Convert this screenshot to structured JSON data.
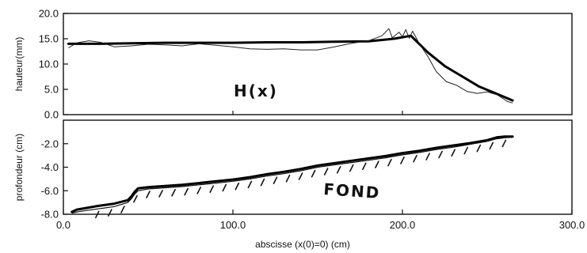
{
  "chart_data": [
    {
      "type": "line",
      "ylabel": "hauteur(mm)",
      "ylim": [
        0,
        20
      ],
      "xlim": [
        0,
        300
      ],
      "yticks": [
        "20.0",
        "15.0",
        "10.0",
        "5.0",
        "0.0"
      ],
      "annotation": "H(x)",
      "series": [
        {
          "style": "thick",
          "x": [
            3,
            20,
            40,
            60,
            80,
            100,
            120,
            140,
            160,
            180,
            195,
            205,
            215,
            225,
            235,
            245,
            255,
            265
          ],
          "y": [
            14.0,
            14.0,
            14.1,
            14.2,
            14.2,
            14.2,
            14.3,
            14.3,
            14.4,
            14.5,
            15.0,
            15.6,
            12.3,
            9.6,
            7.6,
            5.6,
            4.2,
            2.8
          ]
        },
        {
          "style": "thin",
          "x": [
            3,
            8,
            15,
            22,
            30,
            40,
            50,
            60,
            70,
            80,
            90,
            100,
            110,
            120,
            130,
            140,
            150,
            160,
            170,
            180,
            188,
            192,
            194,
            198,
            200,
            202,
            204,
            206,
            210,
            215,
            220,
            226,
            232,
            238,
            244,
            250,
            256,
            262,
            265
          ],
          "y": [
            13.2,
            14.2,
            14.6,
            14.3,
            13.4,
            13.6,
            13.9,
            13.8,
            13.6,
            14.0,
            13.7,
            13.4,
            13.0,
            12.9,
            13.0,
            12.8,
            12.8,
            13.4,
            14.1,
            14.6,
            15.6,
            17.0,
            15.2,
            16.3,
            15.4,
            16.8,
            15.1,
            16.5,
            14.0,
            11.5,
            8.5,
            6.5,
            5.8,
            4.6,
            4.2,
            4.5,
            3.9,
            2.6,
            2.3
          ]
        }
      ]
    },
    {
      "type": "line",
      "ylabel": "profondeur (cm)",
      "xlabel": "abscisse (x(0)=0) (cm)",
      "ylim": [
        -8,
        0
      ],
      "xlim": [
        0,
        300
      ],
      "yticks": [
        "-2.0",
        "-4.0",
        "-6.0",
        "-8.0"
      ],
      "xticks": [
        "0.0",
        "100.0",
        "200.0",
        "300.0"
      ],
      "annotation": "FOND",
      "series": [
        {
          "style": "thick",
          "x": [
            5,
            8,
            12,
            20,
            30,
            38,
            40,
            42,
            44,
            50,
            60,
            70,
            80,
            90,
            100,
            110,
            120,
            130,
            140,
            150,
            160,
            170,
            180,
            190,
            200,
            210,
            220,
            230,
            240,
            250,
            256,
            260,
            265
          ],
          "y": [
            -7.8,
            -7.6,
            -7.5,
            -7.3,
            -7.1,
            -6.8,
            -6.5,
            -6.1,
            -5.8,
            -5.7,
            -5.6,
            -5.5,
            -5.35,
            -5.2,
            -5.05,
            -4.85,
            -4.6,
            -4.4,
            -4.15,
            -3.85,
            -3.65,
            -3.45,
            -3.25,
            -3.05,
            -2.8,
            -2.6,
            -2.35,
            -2.15,
            -1.95,
            -1.7,
            -1.45,
            -1.4,
            -1.4
          ]
        },
        {
          "style": "hatch",
          "x": [
            5,
            10,
            20,
            30,
            38,
            40,
            42,
            44,
            50,
            60,
            70,
            80,
            90,
            100,
            110,
            120,
            130,
            140,
            150,
            160,
            170,
            180,
            190,
            200,
            210,
            220,
            230,
            240,
            250,
            255,
            260,
            265
          ],
          "y": [
            -7.9,
            -7.75,
            -7.55,
            -7.35,
            -7.0,
            -6.7,
            -6.3,
            -6.0,
            -5.85,
            -5.75,
            -5.65,
            -5.5,
            -5.35,
            -5.2,
            -5.0,
            -4.75,
            -4.55,
            -4.3,
            -4.0,
            -3.8,
            -3.6,
            -3.4,
            -3.2,
            -2.95,
            -2.75,
            -2.5,
            -2.3,
            -2.05,
            -1.8,
            -1.6,
            -1.5,
            -1.45
          ]
        }
      ]
    }
  ]
}
